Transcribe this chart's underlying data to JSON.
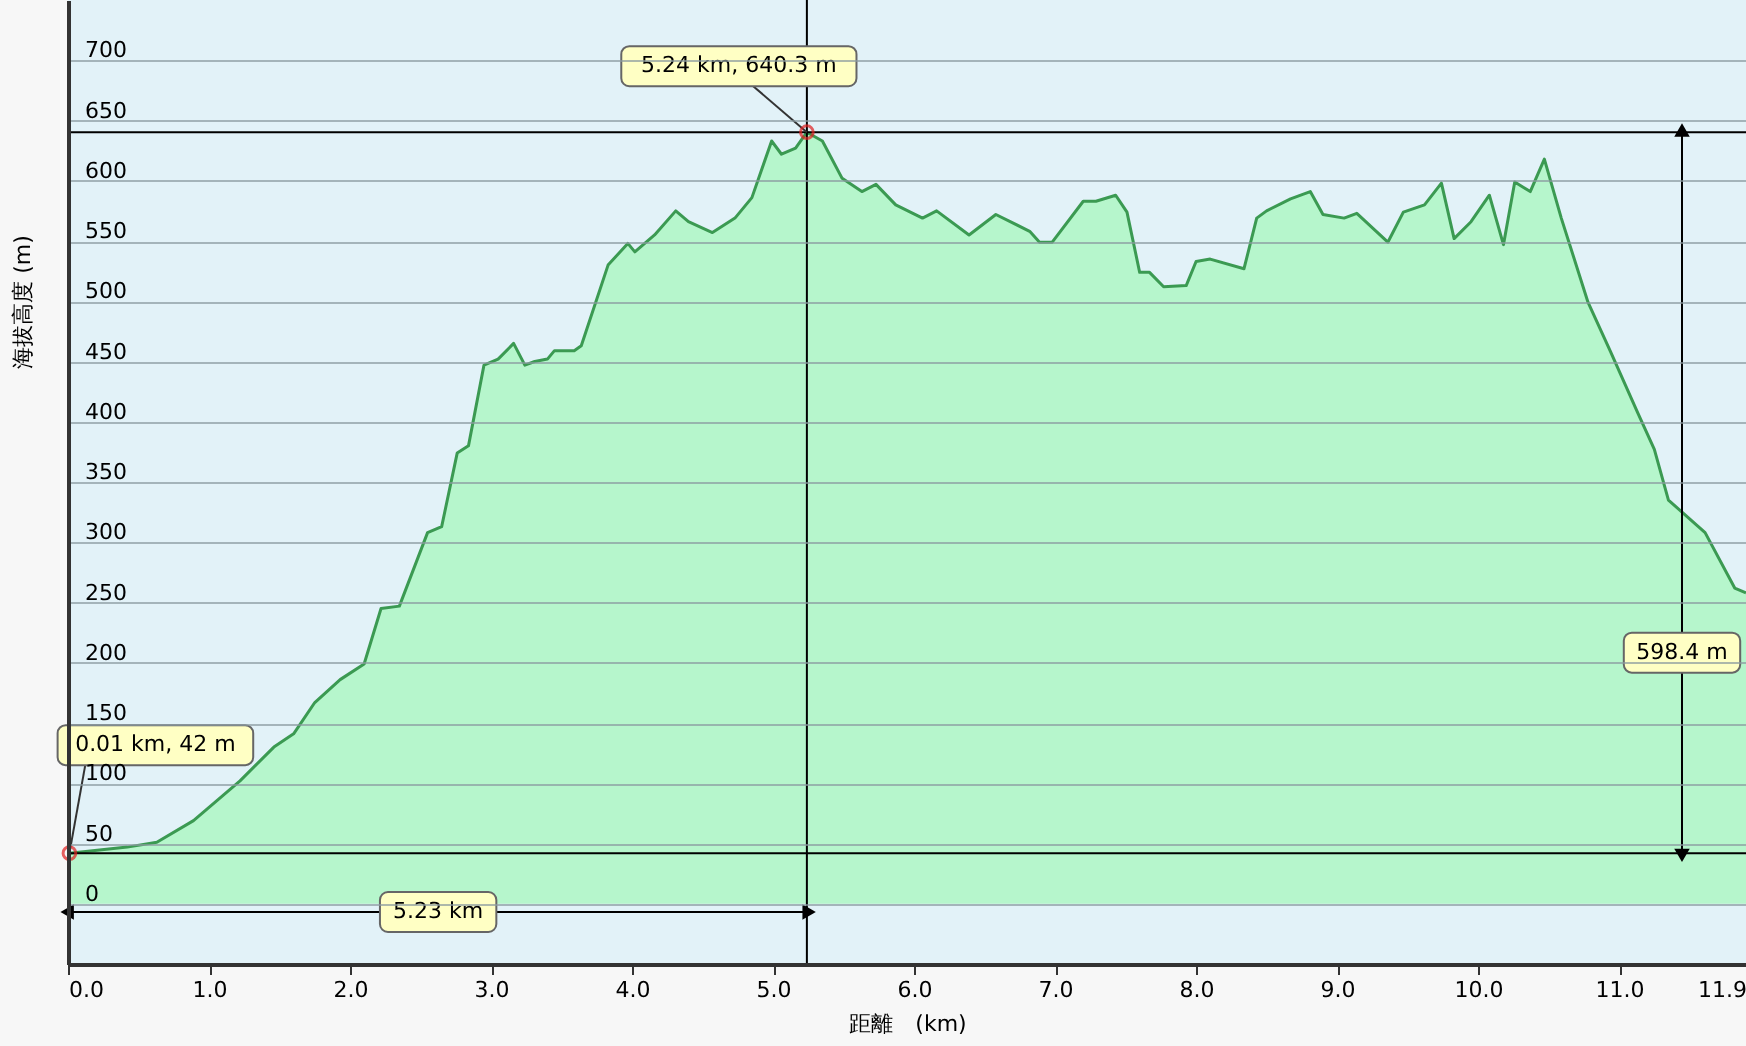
{
  "chart_data": {
    "type": "area",
    "xlabel": "距離　(km)",
    "ylabel": "海拔高度 (m)",
    "x": [
      0.01,
      0.42,
      0.63,
      0.89,
      1.22,
      1.46,
      1.6,
      1.75,
      1.93,
      2.1,
      2.22,
      2.35,
      2.55,
      2.65,
      2.76,
      2.84,
      2.95,
      3.05,
      3.16,
      3.24,
      3.31,
      3.4,
      3.45,
      3.59,
      3.64,
      3.83,
      3.97,
      4.02,
      4.16,
      4.31,
      4.4,
      4.57,
      4.73,
      4.85,
      4.99,
      5.06,
      5.16,
      5.24,
      5.35,
      5.49,
      5.63,
      5.73,
      5.87,
      6.06,
      6.16,
      6.39,
      6.58,
      6.82,
      6.89,
      6.98,
      7.2,
      7.29,
      7.43,
      7.51,
      7.6,
      7.67,
      7.77,
      7.93,
      8.0,
      8.1,
      8.34,
      8.43,
      8.5,
      8.67,
      8.81,
      8.9,
      9.05,
      9.14,
      9.36,
      9.47,
      9.62,
      9.74,
      9.83,
      9.95,
      10.08,
      10.18,
      10.26,
      10.37,
      10.47,
      10.59,
      10.78,
      10.94,
      11.13,
      11.25,
      11.35,
      11.61,
      11.82,
      11.9
    ],
    "series": [
      {
        "color": "#b3f5c9",
        "values": [
          42,
          47,
          51,
          69,
          102,
          130,
          141,
          167,
          186,
          199,
          245,
          247,
          308,
          313,
          374,
          380,
          447,
          452,
          465,
          447,
          450,
          452,
          459,
          459,
          463,
          530,
          548,
          541,
          555,
          575,
          566,
          557,
          569,
          586,
          633,
          622,
          627,
          640.3,
          633,
          602,
          591,
          597,
          580,
          569,
          575,
          555,
          572,
          558,
          549,
          549,
          583,
          583,
          588,
          574,
          524,
          524,
          512,
          513,
          533,
          535,
          527,
          569,
          575,
          585,
          591,
          572,
          569,
          573,
          549,
          574,
          580,
          598,
          552,
          566,
          588,
          547,
          599,
          591,
          618,
          569,
          499,
          458,
          408,
          377,
          335,
          308,
          262,
          258
        ]
      }
    ],
    "xlim": [
      0,
      11.9
    ],
    "ylim": [
      -50,
      750
    ],
    "xticks": [
      {
        "value": 0,
        "label": "0.0"
      },
      {
        "value": 1,
        "label": "1.0"
      },
      {
        "value": 2,
        "label": "2.0"
      },
      {
        "value": 3,
        "label": "3.0"
      },
      {
        "value": 4,
        "label": "4.0"
      },
      {
        "value": 5,
        "label": "5.0"
      },
      {
        "value": 6,
        "label": "6.0"
      },
      {
        "value": 7,
        "label": "7.0"
      },
      {
        "value": 8,
        "label": "8.0"
      },
      {
        "value": 9,
        "label": "9.0"
      },
      {
        "value": 10,
        "label": "10.0"
      },
      {
        "value": 11,
        "label": "11.0"
      },
      {
        "value": 11.9,
        "label": "11.9"
      }
    ],
    "yticks": [
      0,
      50,
      100,
      150,
      200,
      250,
      300,
      350,
      400,
      450,
      500,
      550,
      600,
      650,
      700
    ],
    "grid": "y",
    "ref_lines": [
      {
        "axis": "y",
        "value": 640.3,
        "color": "#000000"
      },
      {
        "axis": "y",
        "value": 42,
        "color": "#000000"
      },
      {
        "axis": "x",
        "value": 5.24,
        "color": "#000000"
      }
    ],
    "annotations": [
      {
        "text": "0.01 km, 42 m",
        "x": 0.01,
        "y": 42
      },
      {
        "text": "5.24 km, 640.3 m",
        "x": 5.24,
        "y": 640.3
      },
      "5.23 km",
      "598.4 m"
    ]
  }
}
